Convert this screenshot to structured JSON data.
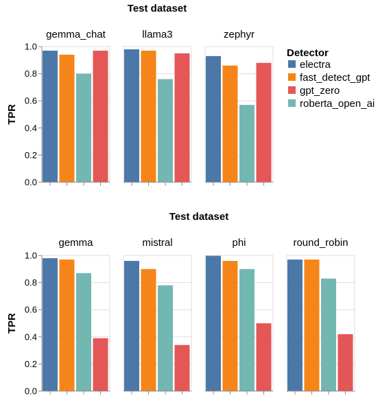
{
  "legend": {
    "title": "Detector",
    "items": [
      {
        "label": "electra",
        "color": "#4c78a8"
      },
      {
        "label": "fast_detect_gpt",
        "color": "#f58518"
      },
      {
        "label": "gpt_zero",
        "color": "#e45756"
      },
      {
        "label": "roberta_open_ai",
        "color": "#72b7b2"
      }
    ]
  },
  "chart_data": [
    {
      "type": "bar",
      "title": "Test dataset",
      "ylabel": "TPR",
      "ylim": [
        0,
        1
      ],
      "yticks": [
        "0.0",
        "0.2",
        "0.4",
        "0.6",
        "0.8",
        "1.0"
      ],
      "bar_order": [
        "electra",
        "fast_detect_gpt",
        "roberta_open_ai",
        "gpt_zero"
      ],
      "facets": [
        {
          "name": "gemma_chat",
          "values": {
            "electra": 0.97,
            "fast_detect_gpt": 0.94,
            "roberta_open_ai": 0.8,
            "gpt_zero": 0.97
          }
        },
        {
          "name": "llama3",
          "values": {
            "electra": 0.98,
            "fast_detect_gpt": 0.97,
            "roberta_open_ai": 0.76,
            "gpt_zero": 0.95
          }
        },
        {
          "name": "zephyr",
          "values": {
            "electra": 0.93,
            "fast_detect_gpt": 0.86,
            "roberta_open_ai": 0.57,
            "gpt_zero": 0.88
          }
        }
      ]
    },
    {
      "type": "bar",
      "title": "Test dataset",
      "ylabel": "TPR",
      "ylim": [
        0,
        1
      ],
      "yticks": [
        "0.0",
        "0.2",
        "0.4",
        "0.6",
        "0.8",
        "1.0"
      ],
      "bar_order": [
        "electra",
        "fast_detect_gpt",
        "roberta_open_ai",
        "gpt_zero"
      ],
      "facets": [
        {
          "name": "gemma",
          "values": {
            "electra": 0.98,
            "fast_detect_gpt": 0.97,
            "roberta_open_ai": 0.87,
            "gpt_zero": 0.39
          }
        },
        {
          "name": "mistral",
          "values": {
            "electra": 0.96,
            "fast_detect_gpt": 0.9,
            "roberta_open_ai": 0.78,
            "gpt_zero": 0.34
          }
        },
        {
          "name": "phi",
          "values": {
            "electra": 1.0,
            "fast_detect_gpt": 0.96,
            "roberta_open_ai": 0.9,
            "gpt_zero": 0.5
          }
        },
        {
          "name": "round_robin",
          "values": {
            "electra": 0.97,
            "fast_detect_gpt": 0.97,
            "roberta_open_ai": 0.83,
            "gpt_zero": 0.42
          }
        }
      ]
    }
  ]
}
